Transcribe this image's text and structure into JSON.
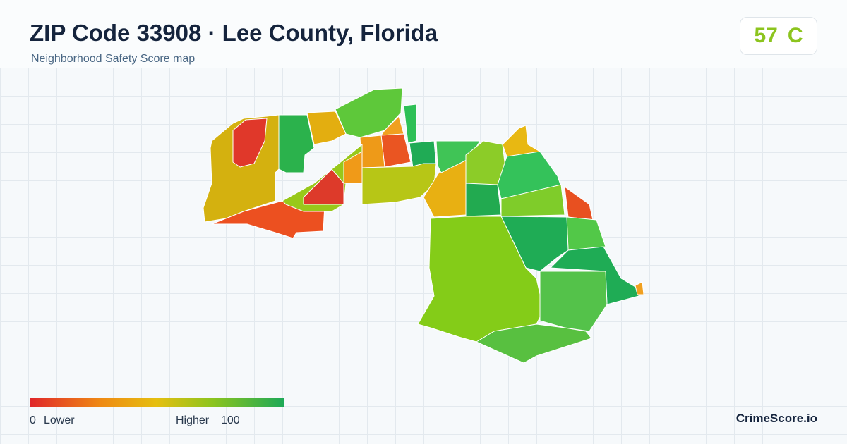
{
  "header": {
    "title": "ZIP Code 33908 · Lee County, Florida",
    "subtitle": "Neighborhood Safety Score map",
    "score": 57,
    "grade": "C"
  },
  "legend": {
    "min": 0,
    "low_label": "Lower",
    "high_label": "Higher",
    "max": 100
  },
  "footer": {
    "brand": "CrimeScore.io"
  }
}
